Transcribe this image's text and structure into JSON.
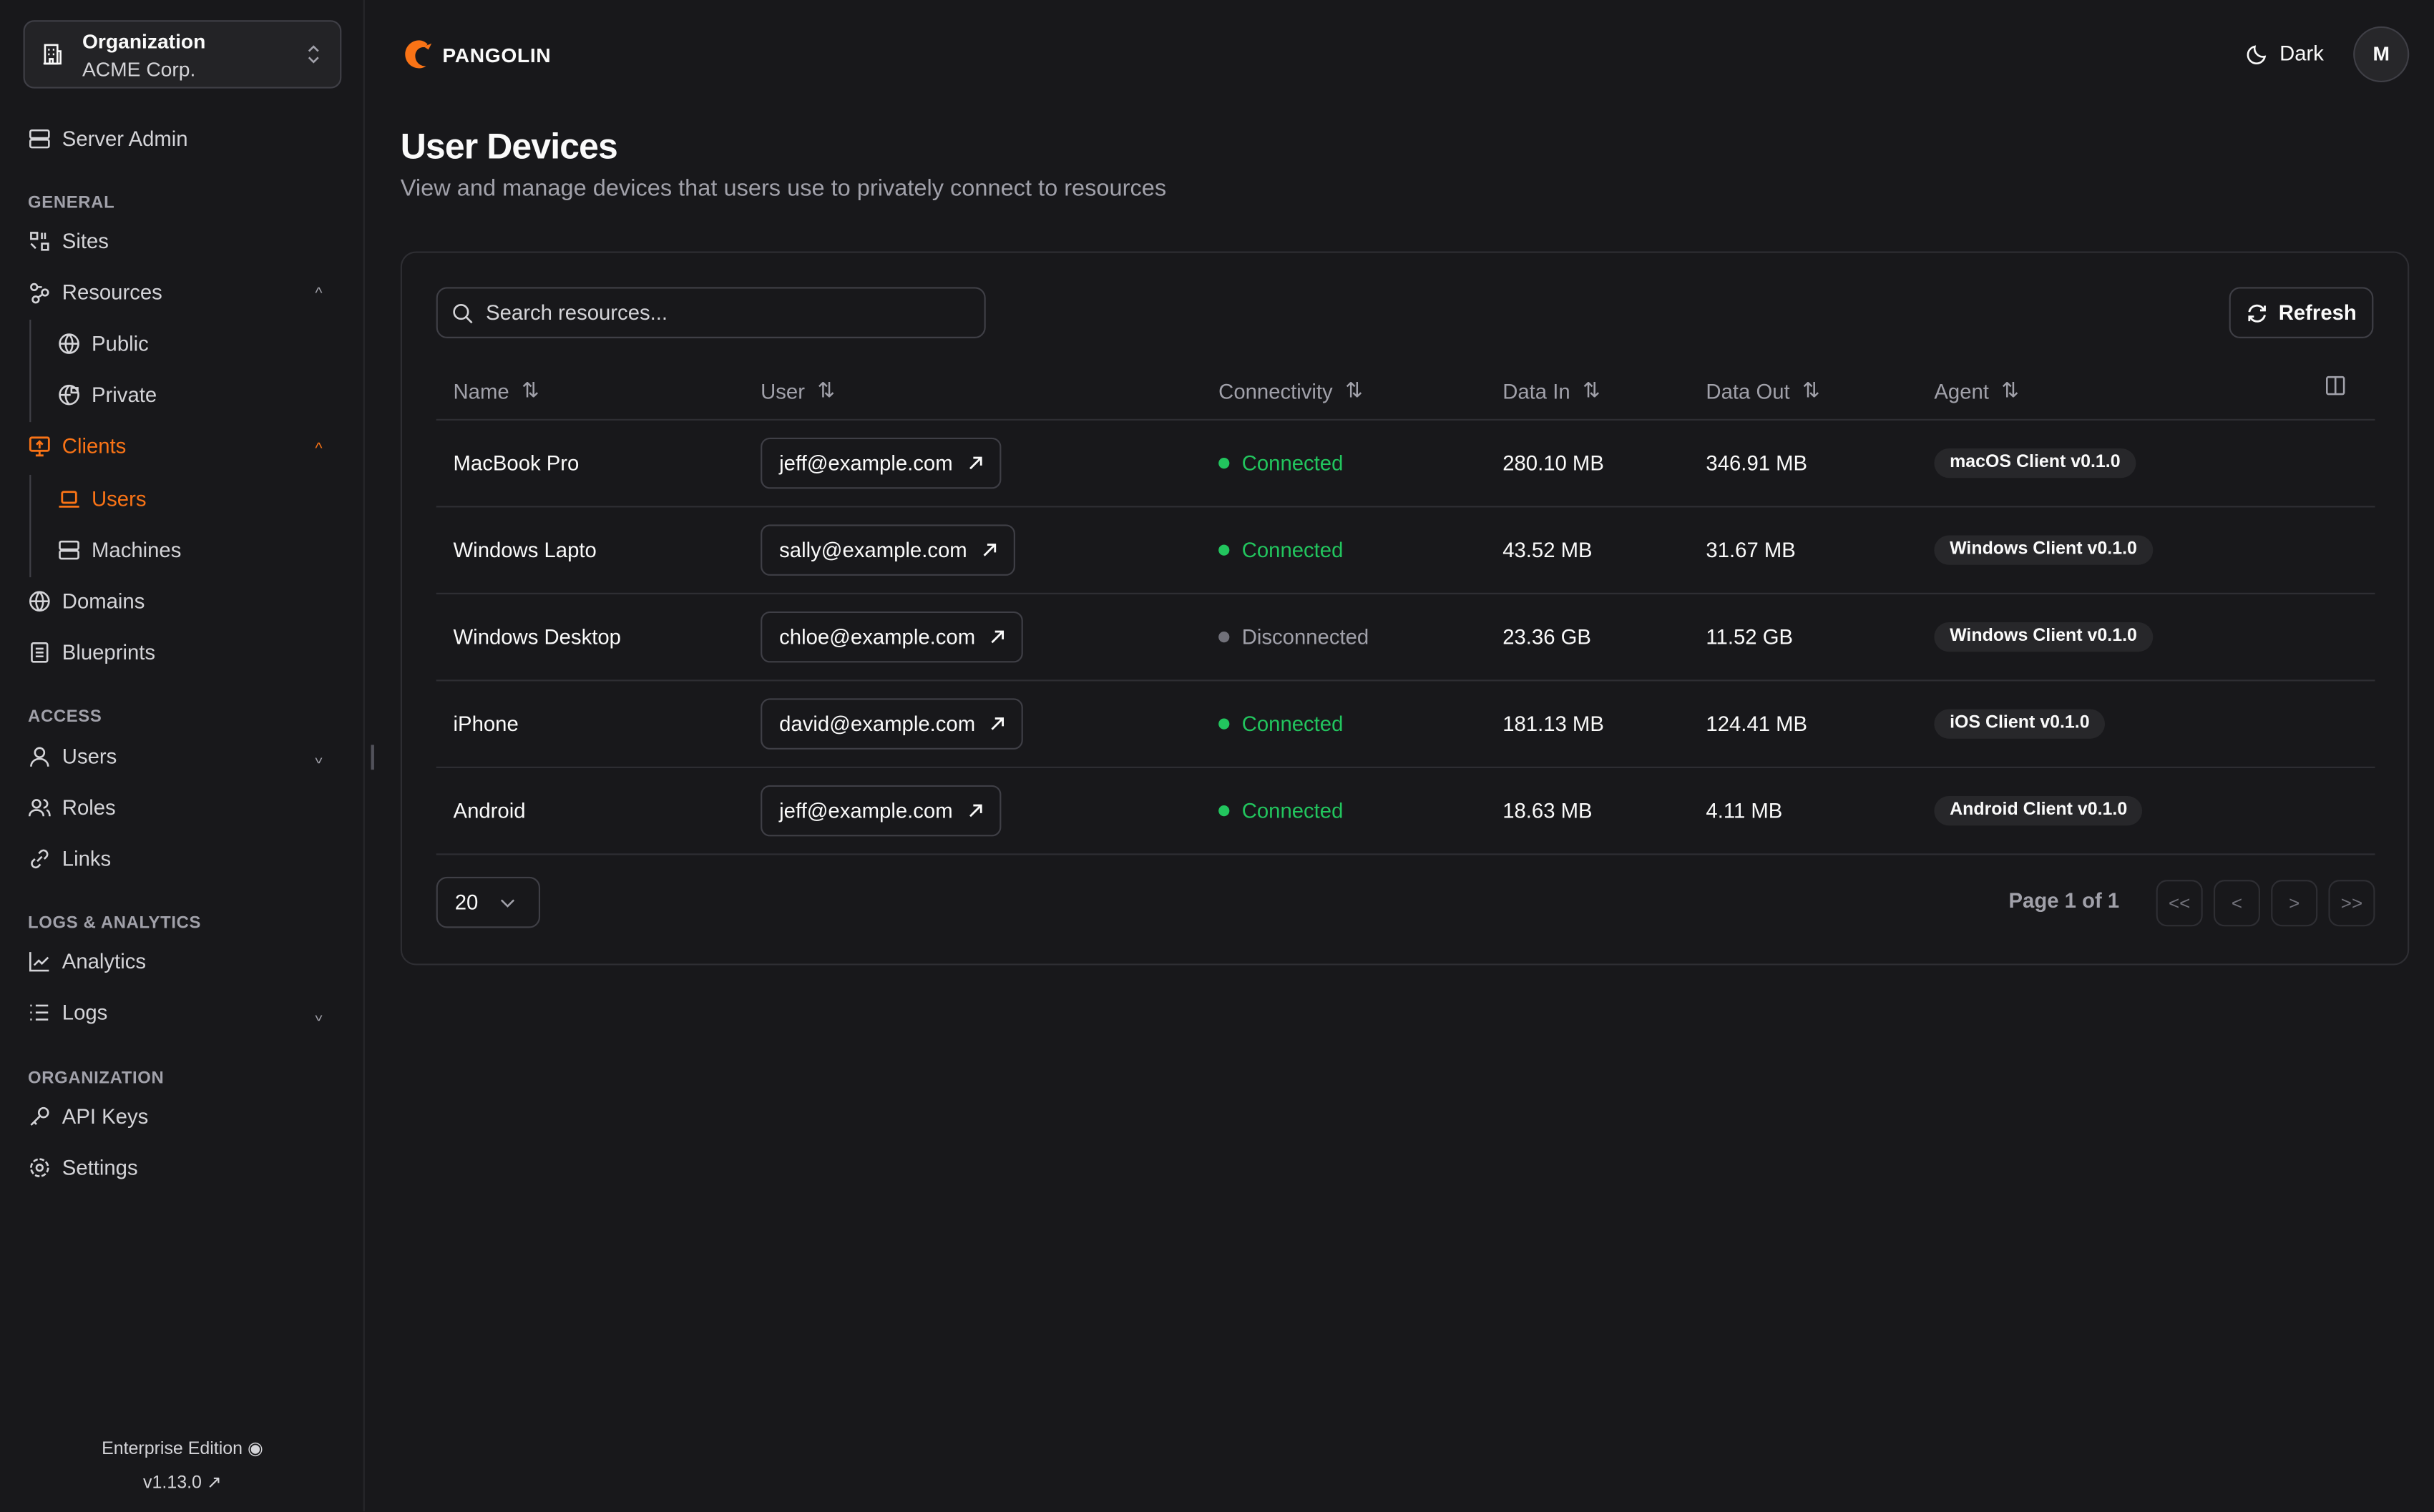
{
  "colors": {
    "accent": "#f97316",
    "connected": "#22c55e",
    "disconnected": "#71717a",
    "background": "#18181b"
  },
  "org": {
    "label": "Organization",
    "name": "ACME Corp."
  },
  "sidebar": {
    "server_admin": "Server Admin",
    "sections": {
      "general": "GENERAL",
      "access": "ACCESS",
      "logs": "LOGS & ANALYTICS",
      "organization": "ORGANIZATION"
    },
    "items": {
      "sites": "Sites",
      "resources": "Resources",
      "public": "Public",
      "private": "Private",
      "clients": "Clients",
      "users_sub": "Users",
      "machines": "Machines",
      "domains": "Domains",
      "blueprints": "Blueprints",
      "users": "Users",
      "roles": "Roles",
      "links": "Links",
      "analytics": "Analytics",
      "logs": "Logs",
      "api_keys": "API Keys",
      "settings": "Settings"
    },
    "edition": "Enterprise Edition",
    "version": "v1.13.0"
  },
  "header": {
    "brand": "PANGOLIN",
    "theme": "Dark",
    "avatar": "M"
  },
  "page": {
    "title": "User Devices",
    "description": "View and manage devices that users use to privately connect to resources"
  },
  "toolbar": {
    "search_placeholder": "Search resources...",
    "refresh": "Refresh"
  },
  "table": {
    "columns": [
      "Name",
      "User",
      "Connectivity",
      "Data In",
      "Data Out",
      "Agent"
    ],
    "rows": [
      {
        "name": "MacBook Pro",
        "user": "jeff@example.com",
        "status": "Connected",
        "connected": true,
        "data_in": "280.10 MB",
        "data_out": "346.91 MB",
        "agent": "macOS Client v0.1.0"
      },
      {
        "name": "Windows Lapto",
        "user": "sally@example.com",
        "status": "Connected",
        "connected": true,
        "data_in": "43.52 MB",
        "data_out": "31.67 MB",
        "agent": "Windows Client v0.1.0"
      },
      {
        "name": "Windows Desktop",
        "user": "chloe@example.com",
        "status": "Disconnected",
        "connected": false,
        "data_in": "23.36 GB",
        "data_out": "11.52 GB",
        "agent": "Windows Client v0.1.0"
      },
      {
        "name": "iPhone",
        "user": "david@example.com",
        "status": "Connected",
        "connected": true,
        "data_in": "181.13 MB",
        "data_out": "124.41 MB",
        "agent": "iOS Client v0.1.0"
      },
      {
        "name": "Android",
        "user": "jeff@example.com",
        "status": "Connected",
        "connected": true,
        "data_in": "18.63 MB",
        "data_out": "4.11 MB",
        "agent": "Android Client v0.1.0"
      }
    ]
  },
  "pagination": {
    "page_size": "20",
    "info": "Page 1 of 1",
    "first": "<<",
    "prev": "<",
    "next": ">",
    "last": ">>"
  }
}
